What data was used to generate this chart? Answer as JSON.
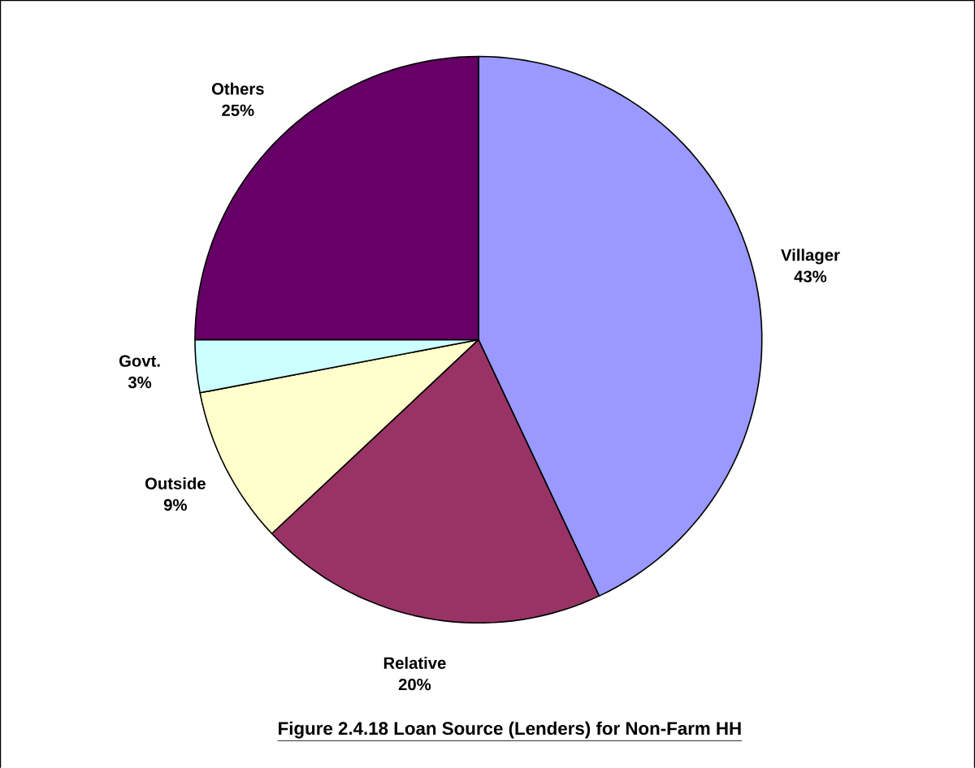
{
  "chart_data": {
    "type": "pie",
    "title": "Figure 2.4.18    Loan Source (Lenders) for Non-Farm HH",
    "categories": [
      "Villager",
      "Relative",
      "Outside",
      "Govt.",
      "Others"
    ],
    "values": [
      43,
      20,
      9,
      3,
      25
    ],
    "value_labels": [
      "43%",
      "20%",
      "9%",
      "3%",
      "25%"
    ],
    "colors": [
      "#9999ff",
      "#993366",
      "#ffffcc",
      "#ccffff",
      "#660066"
    ]
  }
}
